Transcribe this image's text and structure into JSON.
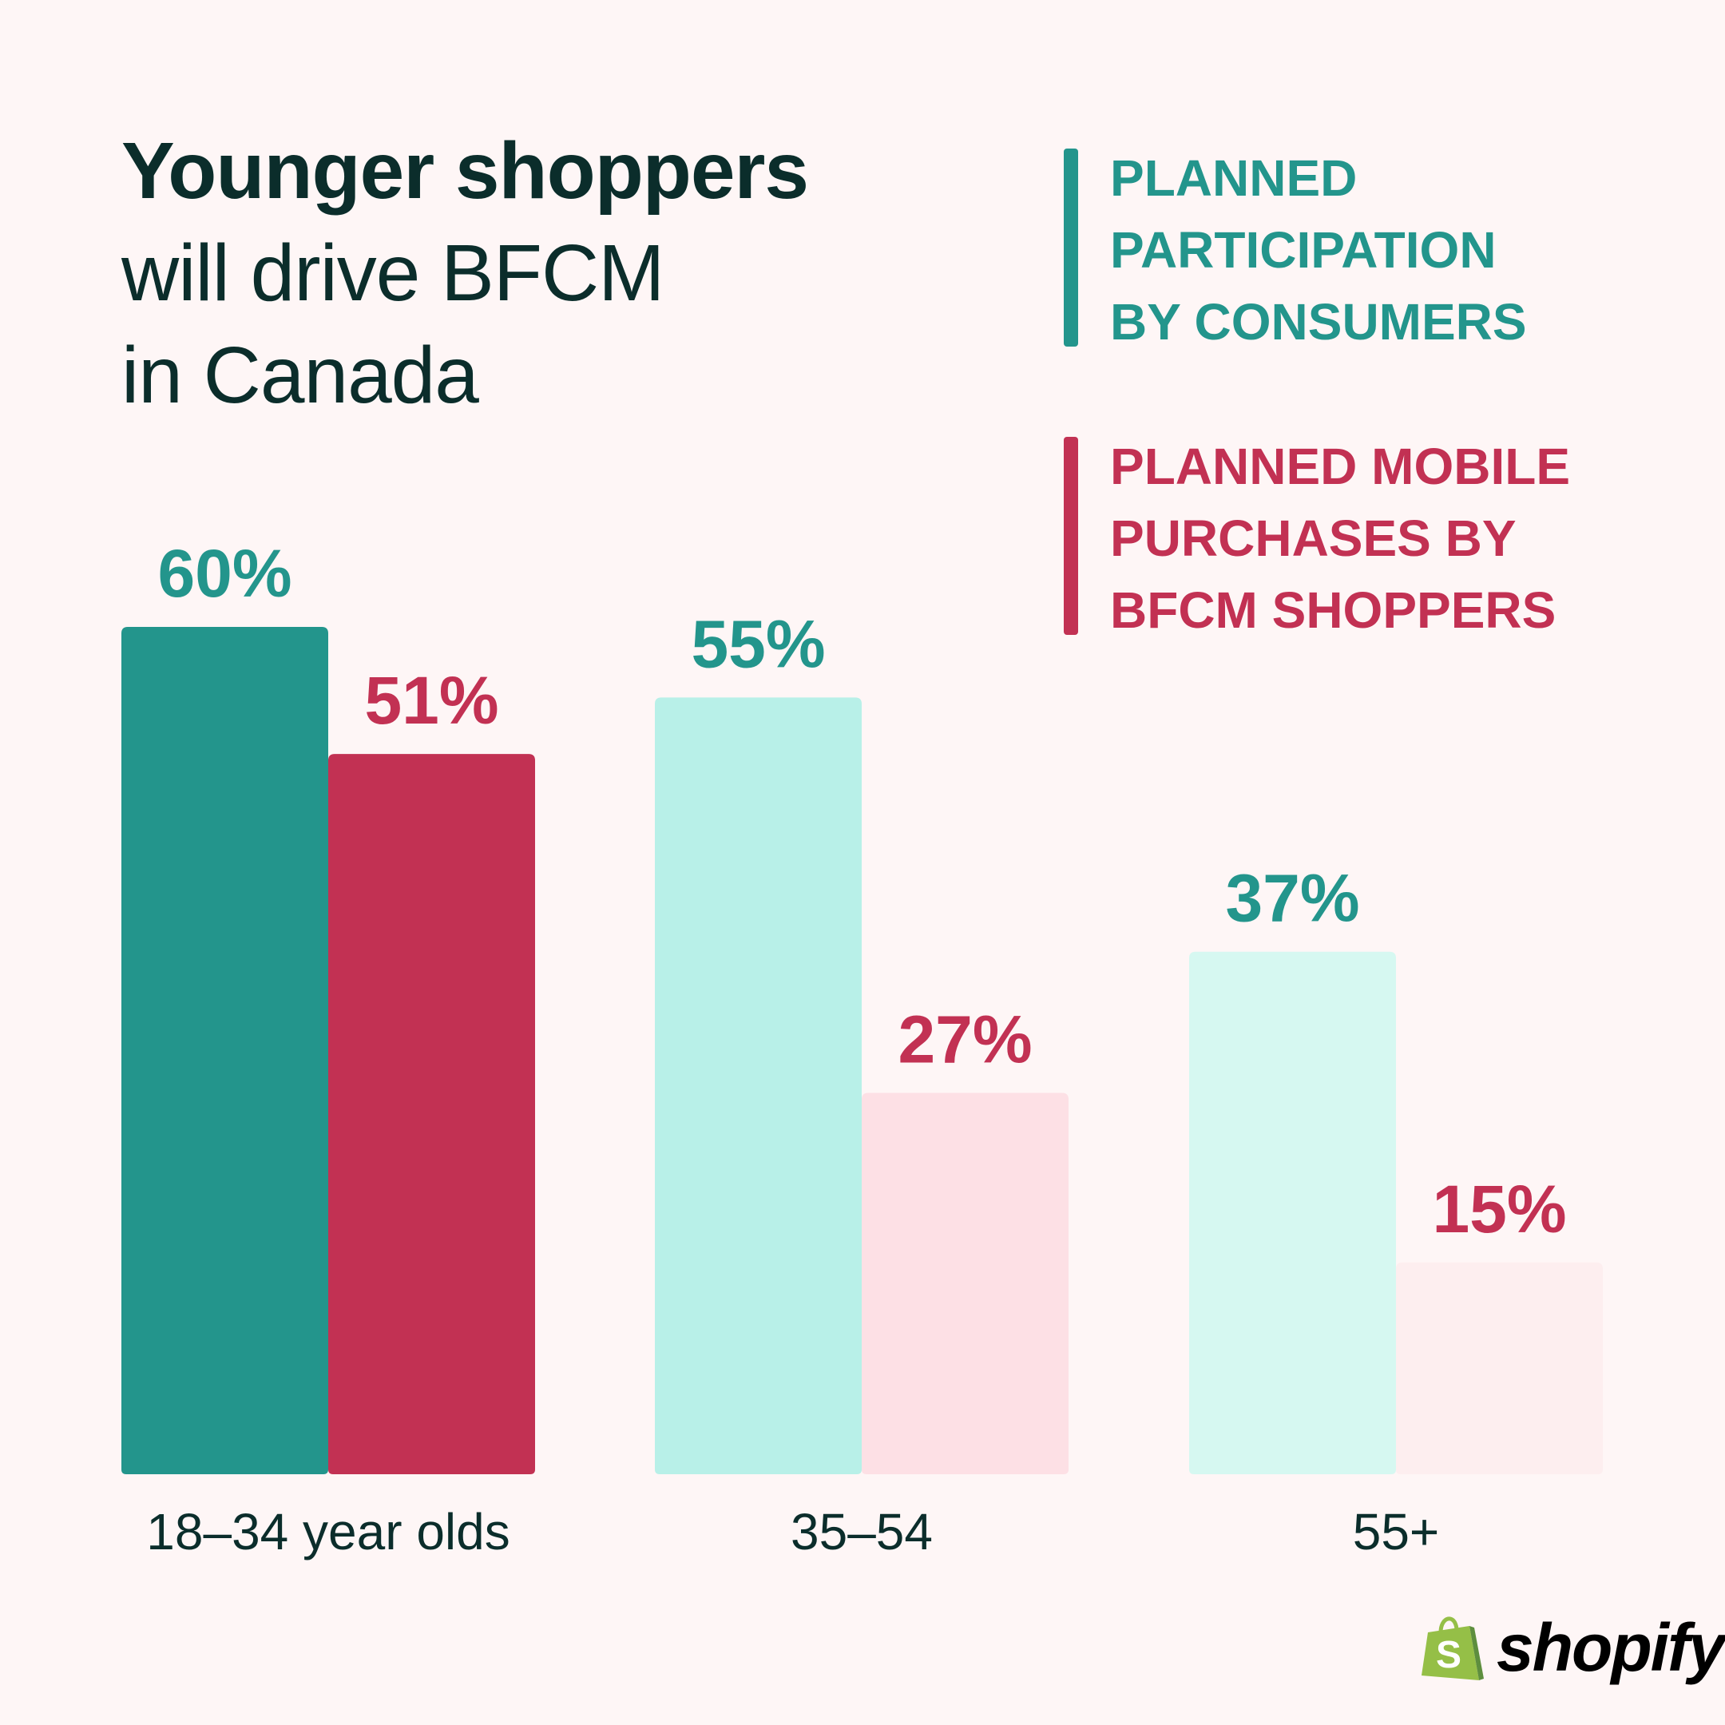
{
  "title": {
    "bold": "Younger shoppers",
    "rest_line1": "will drive BFCM",
    "rest_line2": "in Canada"
  },
  "legend": [
    {
      "label": "PLANNED PARTICIPATION BY CONSUMERS",
      "color": "#23958c"
    },
    {
      "label": "PLANNED MOBILE PURCHASES BY BFCM SHOPPERS",
      "color": "#c23153"
    }
  ],
  "chart_data": {
    "type": "bar",
    "categories": [
      "18–34 year olds",
      "35–54",
      "55+"
    ],
    "series": [
      {
        "name": "PLANNED PARTICIPATION BY CONSUMERS",
        "values": [
          60,
          55,
          37
        ],
        "labels": [
          "60%",
          "55%",
          "37%"
        ],
        "colors": [
          "#23958c",
          "#b8f0e8",
          "#d6f8f1"
        ],
        "label_color": "#23958c"
      },
      {
        "name": "PLANNED MOBILE PURCHASES BY BFCM SHOPPERS",
        "values": [
          51,
          27,
          15
        ],
        "labels": [
          "51%",
          "27%",
          "15%"
        ],
        "colors": [
          "#c23153",
          "#fde0e5",
          "#fdeeef"
        ],
        "label_color": "#c23153"
      }
    ],
    "ylim": [
      0,
      60
    ],
    "grid": false,
    "legend_placement": "top-right"
  },
  "brand": {
    "name": "shopify",
    "color": "#95bf47"
  }
}
